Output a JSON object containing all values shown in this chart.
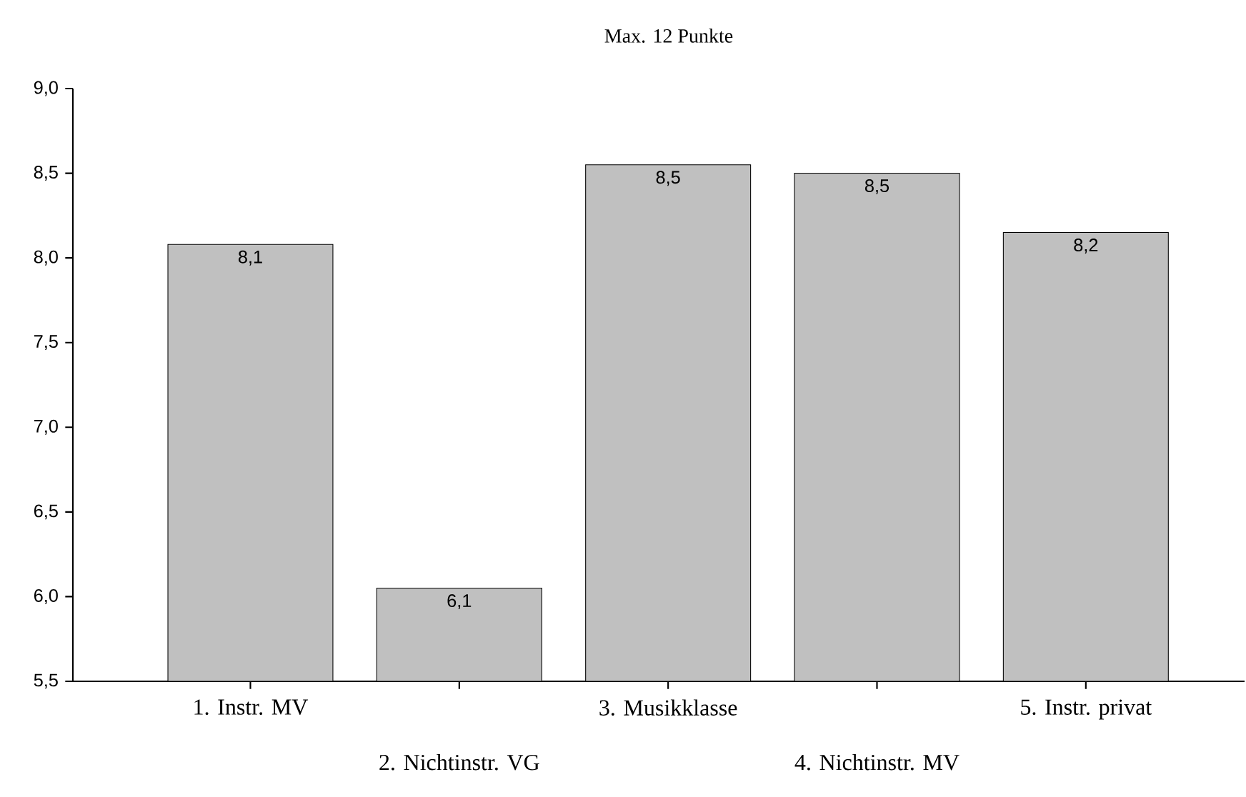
{
  "chart_data": {
    "type": "bar",
    "title": "Max. 12 Punkte",
    "categories": [
      "1. Instr. MV",
      "2. Nichtinstr. VG",
      "3. Musikklasse",
      "4. Nichtinstr. MV",
      "5. Instr. privat"
    ],
    "values": [
      8.08,
      6.05,
      8.55,
      8.5,
      8.15
    ],
    "value_labels": [
      "8,1",
      "6,1",
      "8,5",
      "8,5",
      "8,2"
    ],
    "color": "#c0c0c0",
    "ylim": [
      5.5,
      9.0
    ],
    "yticks": [
      {
        "value": 5.5,
        "label": "5,5"
      },
      {
        "value": 6.0,
        "label": "6,0"
      },
      {
        "value": 6.5,
        "label": "6,5"
      },
      {
        "value": 7.0,
        "label": "7,0"
      },
      {
        "value": 7.5,
        "label": "7,5"
      },
      {
        "value": 8.0,
        "label": "8,0"
      },
      {
        "value": 8.5,
        "label": "8,5"
      },
      {
        "value": 9.0,
        "label": "9,0"
      }
    ],
    "grid": false
  }
}
